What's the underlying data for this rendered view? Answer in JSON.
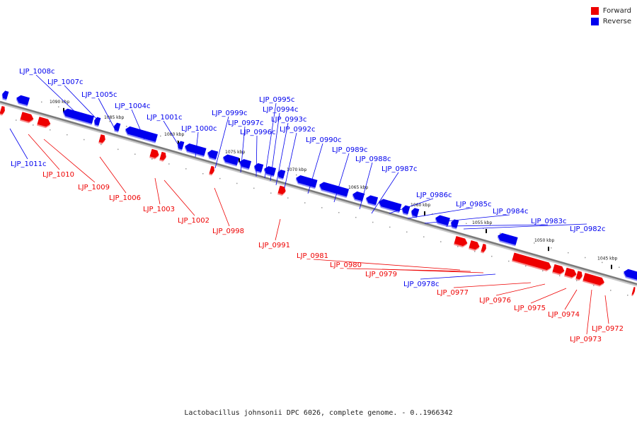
{
  "legend": {
    "forward_label": "Forward",
    "reverse_label": "Reverse",
    "forward_color": "#ee0000",
    "reverse_color": "#0000ee"
  },
  "caption": "Lactobacillus johnsonii DPC 6026, complete genome. - 0..1966342",
  "ticks": [
    "1090 kbp",
    "1085 kbp",
    "1080 kbp",
    "1075 kbp",
    "1070 kbp",
    "1065 kbp",
    "1060 kbp",
    "1055 kbp",
    "1050 kbp",
    "1045 kbp"
  ],
  "genes": [
    {
      "label": "LJP_1008c",
      "strand": "reverse"
    },
    {
      "label": "LJP_1007c",
      "strand": "reverse"
    },
    {
      "label": "LJP_1005c",
      "strand": "reverse"
    },
    {
      "label": "LJP_1004c",
      "strand": "reverse"
    },
    {
      "label": "LJP_1001c",
      "strand": "reverse"
    },
    {
      "label": "LJP_1000c",
      "strand": "reverse"
    },
    {
      "label": "LJP_0999c",
      "strand": "reverse"
    },
    {
      "label": "LJP_0997c",
      "strand": "reverse"
    },
    {
      "label": "LJP_0996c",
      "strand": "reverse"
    },
    {
      "label": "LJP_0995c",
      "strand": "reverse"
    },
    {
      "label": "LJP_0994c",
      "strand": "reverse"
    },
    {
      "label": "LJP_0993c",
      "strand": "reverse"
    },
    {
      "label": "LJP_0992c",
      "strand": "reverse"
    },
    {
      "label": "LJP_0990c",
      "strand": "reverse"
    },
    {
      "label": "LJP_0989c",
      "strand": "reverse"
    },
    {
      "label": "LJP_0988c",
      "strand": "reverse"
    },
    {
      "label": "LJP_0987c",
      "strand": "reverse"
    },
    {
      "label": "LJP_0986c",
      "strand": "reverse"
    },
    {
      "label": "LJP_0985c",
      "strand": "reverse"
    },
    {
      "label": "LJP_0984c",
      "strand": "reverse"
    },
    {
      "label": "LJP_0983c",
      "strand": "reverse"
    },
    {
      "label": "LJP_0982c",
      "strand": "reverse"
    },
    {
      "label": "LJP_1011c",
      "strand": "reverse"
    },
    {
      "label": "LJP_0978c",
      "strand": "reverse"
    },
    {
      "label": "LJP_1010",
      "strand": "forward"
    },
    {
      "label": "LJP_1009",
      "strand": "forward"
    },
    {
      "label": "LJP_1006",
      "strand": "forward"
    },
    {
      "label": "LJP_1003",
      "strand": "forward"
    },
    {
      "label": "LJP_1002",
      "strand": "forward"
    },
    {
      "label": "LJP_0998",
      "strand": "forward"
    },
    {
      "label": "LJP_0991",
      "strand": "forward"
    },
    {
      "label": "LJP_0981",
      "strand": "forward"
    },
    {
      "label": "LJP_0980",
      "strand": "forward"
    },
    {
      "label": "LJP_0979",
      "strand": "forward"
    },
    {
      "label": "LJP_0977",
      "strand": "forward"
    },
    {
      "label": "LJP_0976",
      "strand": "forward"
    },
    {
      "label": "LJP_0975",
      "strand": "forward"
    },
    {
      "label": "LJP_0974",
      "strand": "forward"
    },
    {
      "label": "LJP_0973",
      "strand": "forward"
    },
    {
      "label": "LJP_0972",
      "strand": "forward"
    }
  ]
}
